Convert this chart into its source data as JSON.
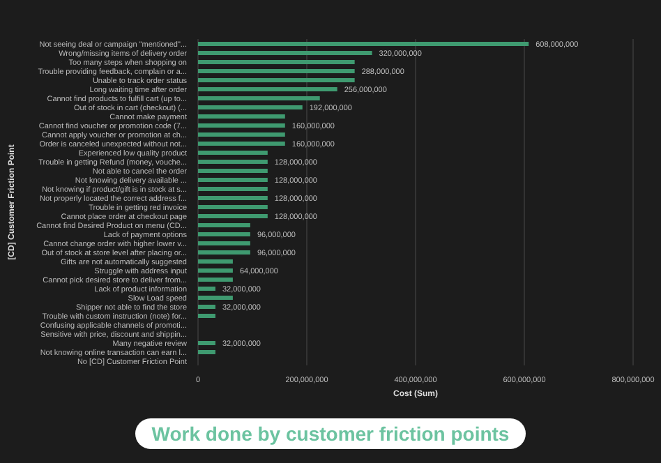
{
  "chart_data": {
    "type": "bar",
    "orientation": "horizontal",
    "xlabel": "Cost (Sum)",
    "ylabel": "[CD] Customer Friction Point",
    "categories": [
      "Not seeing deal or campaign \"mentioned\"...",
      "Wrong/missing items of delivery order",
      "Too many steps when shopping on",
      "Trouble providing feedback, complain or a...",
      "Unable to track order status",
      "Long waiting time after order",
      "Cannot find products to fulfill cart (up to...",
      "Out of stock in cart (checkout) (...",
      "Cannot make payment",
      "Cannot find voucher or promotion code (7...",
      "Cannot apply voucher or promotion at ch...",
      "Order is canceled unexpected without not...",
      "Experienced low quality product",
      "Trouble in getting Refund (money, vouche...",
      "Not able to cancel the order",
      "Not knowing delivery available ...",
      "Not knowing if product/gift is in stock at s...",
      "Not properly located the correct address f...",
      "Trouble in getting red invoice",
      "Cannot place order at checkout page",
      "Cannot find Desired Product on menu (CD...",
      "Lack of payment options",
      "Cannot change order with higher lower v...",
      "Out of stock at store level after placing or...",
      "Gifts are not automatically suggested",
      "Struggle with address input",
      "Cannot pick desired store to deliver from...",
      "Lack of product information",
      "Slow Load speed",
      "Shipper not able to find the store",
      "Trouble with custom instruction (note) for...",
      "Confusing applicable channels of promoti...",
      "Sensitive with price, discount and shippin...",
      "Many negative review",
      "Not knowing online transaction can earn l...",
      "No [CD] Customer Friction Point"
    ],
    "values": [
      608000000,
      320000000,
      288000000,
      288000000,
      288000000,
      256000000,
      224000000,
      192000000,
      160000000,
      160000000,
      160000000,
      160000000,
      128000000,
      128000000,
      128000000,
      128000000,
      128000000,
      128000000,
      128000000,
      128000000,
      96000000,
      96000000,
      96000000,
      96000000,
      64000000,
      64000000,
      64000000,
      32000000,
      64000000,
      32000000,
      32000000,
      null,
      null,
      32000000,
      32000000,
      null
    ],
    "value_labels": [
      "608,000,000",
      "320,000,000",
      null,
      "288,000,000",
      null,
      "256,000,000",
      null,
      "192,000,000",
      null,
      "160,000,000",
      null,
      "160,000,000",
      null,
      "128,000,000",
      null,
      "128,000,000",
      null,
      "128,000,000",
      null,
      "128,000,000",
      null,
      "96,000,000",
      null,
      "96,000,000",
      null,
      "64,000,000",
      null,
      "32,000,000",
      null,
      "32,000,000",
      null,
      null,
      null,
      "32,000,000",
      null,
      null
    ],
    "color": "#3f9a70",
    "xlim": [
      0,
      800000000
    ],
    "xticks": [
      {
        "value": 0,
        "label": "0"
      },
      {
        "value": 200000000,
        "label": "200,000,000"
      },
      {
        "value": 400000000,
        "label": "400,000,000"
      },
      {
        "value": 600000000,
        "label": "600,000,000"
      },
      {
        "value": 800000000,
        "label": "800,000,000"
      }
    ],
    "grid": "x",
    "annotations": [
      "Work done by customer friction points"
    ]
  }
}
